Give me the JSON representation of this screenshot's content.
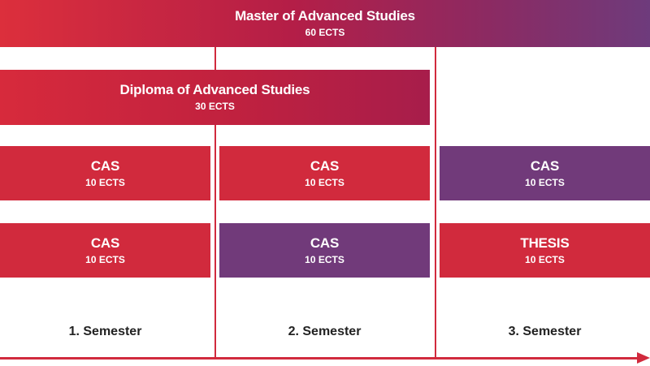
{
  "master": {
    "title": "Master of Advanced Studies",
    "credits": "60 ECTS"
  },
  "diploma": {
    "title": "Diploma of Advanced Studies",
    "credits": "30 ECTS"
  },
  "semester1": {
    "label": "1. Semester",
    "blocks": [
      {
        "title": "CAS",
        "credits": "10 ECTS",
        "color": "#d12a3d"
      },
      {
        "title": "CAS",
        "credits": "10 ECTS",
        "color": "#d12a3d"
      }
    ]
  },
  "semester2": {
    "label": "2. Semester",
    "blocks": [
      {
        "title": "CAS",
        "credits": "10 ECTS",
        "color": "#d12a3d"
      },
      {
        "title": "CAS",
        "credits": "10 ECTS",
        "color": "#713a7a"
      }
    ]
  },
  "semester3": {
    "label": "3. Semester",
    "blocks": [
      {
        "title": "CAS",
        "credits": "10 ECTS",
        "color": "#713a7a"
      },
      {
        "title": "THESIS",
        "credits": "10 ECTS",
        "color": "#d12a3d"
      }
    ]
  },
  "colors": {
    "red": "#d12a3d",
    "purple": "#713a7a"
  }
}
